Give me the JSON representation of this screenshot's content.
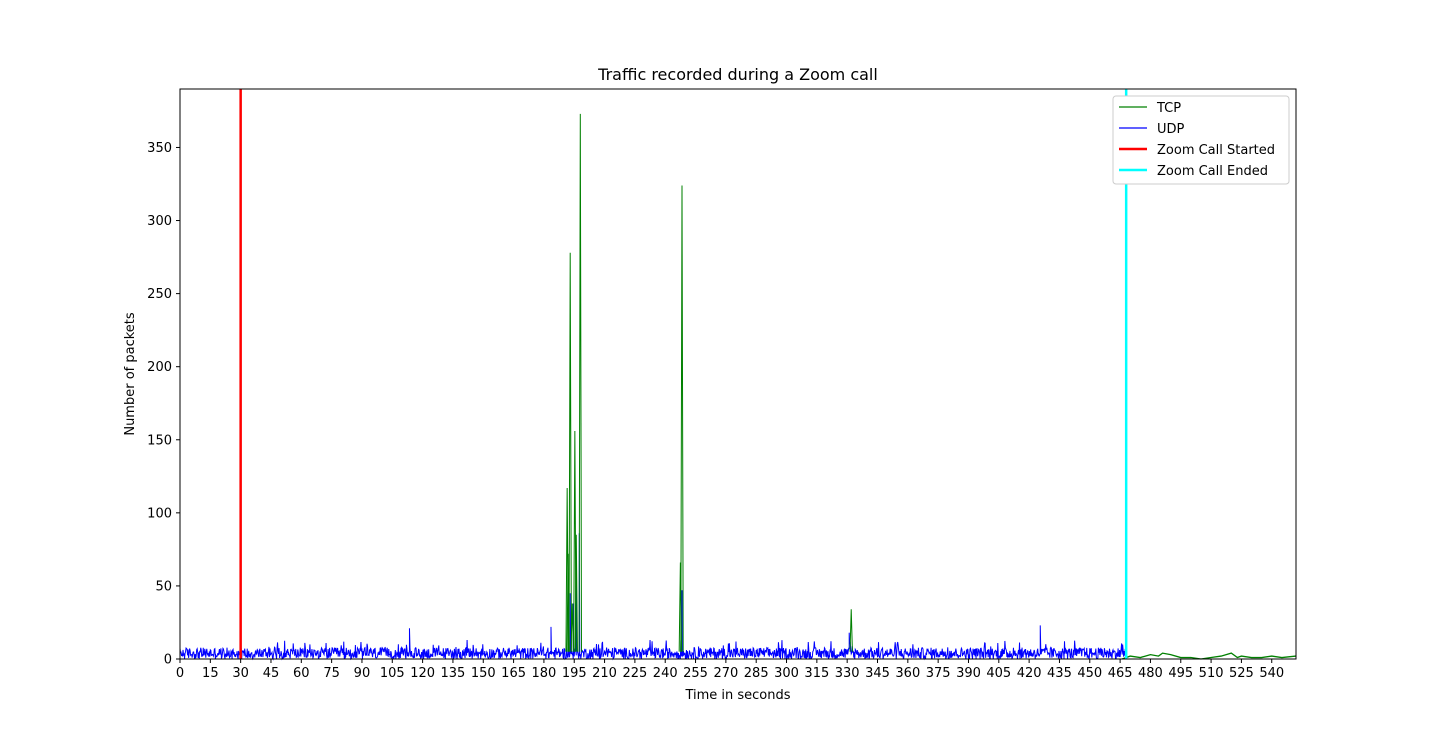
{
  "chart_data": {
    "type": "line",
    "title": "Traffic recorded during a Zoom call",
    "xlabel": "Time in seconds",
    "ylabel": "Number of packets",
    "xlim": [
      0,
      552
    ],
    "ylim": [
      0,
      390
    ],
    "xticks": [
      0,
      15,
      30,
      45,
      60,
      75,
      90,
      105,
      120,
      135,
      150,
      165,
      180,
      195,
      210,
      225,
      240,
      255,
      270,
      285,
      300,
      315,
      330,
      345,
      360,
      375,
      390,
      405,
      420,
      435,
      450,
      465,
      480,
      495,
      510,
      525,
      540
    ],
    "yticks": [
      0,
      50,
      100,
      150,
      200,
      250,
      300,
      350
    ],
    "legend_position": "top-right",
    "colors": {
      "tcp": "#008000",
      "udp": "#0000ff",
      "start": "#ff0000",
      "end": "#00ffff"
    },
    "series": [
      {
        "name": "TCP",
        "peaks": [
          {
            "x": 191.5,
            "y": 117
          },
          {
            "x": 192.0,
            "y": 72
          },
          {
            "x": 193.0,
            "y": 278
          },
          {
            "x": 194.0,
            "y": 38
          },
          {
            "x": 195.3,
            "y": 156
          },
          {
            "x": 196.0,
            "y": 85
          },
          {
            "x": 198.0,
            "y": 373
          },
          {
            "x": 247.5,
            "y": 66
          },
          {
            "x": 248.3,
            "y": 324
          },
          {
            "x": 332.0,
            "y": 34
          }
        ],
        "tail": [
          [
            466,
            0
          ],
          [
            470,
            2
          ],
          [
            475,
            1
          ],
          [
            480,
            3
          ],
          [
            484,
            2
          ],
          [
            486,
            4
          ],
          [
            490,
            3
          ],
          [
            495,
            1
          ],
          [
            500,
            1
          ],
          [
            505,
            0
          ],
          [
            510,
            1
          ],
          [
            515,
            2
          ],
          [
            520,
            4
          ],
          [
            523,
            1
          ],
          [
            525,
            2
          ],
          [
            530,
            1
          ],
          [
            535,
            1
          ],
          [
            540,
            2
          ],
          [
            545,
            1
          ],
          [
            552,
            2
          ]
        ]
      },
      {
        "name": "UDP",
        "baseline": [
          0,
          13
        ],
        "peaks": [
          {
            "x": 113.5,
            "y": 21
          },
          {
            "x": 183.5,
            "y": 22
          },
          {
            "x": 193.0,
            "y": 45
          },
          {
            "x": 194.5,
            "y": 38
          },
          {
            "x": 196.0,
            "y": 70
          },
          {
            "x": 197.5,
            "y": 86
          },
          {
            "x": 248.3,
            "y": 47
          },
          {
            "x": 331.0,
            "y": 18
          },
          {
            "x": 425.5,
            "y": 23
          }
        ]
      }
    ],
    "vlines": [
      {
        "name": "Zoom Call Started",
        "x": 30
      },
      {
        "name": "Zoom Call Ended",
        "x": 468
      }
    ]
  }
}
